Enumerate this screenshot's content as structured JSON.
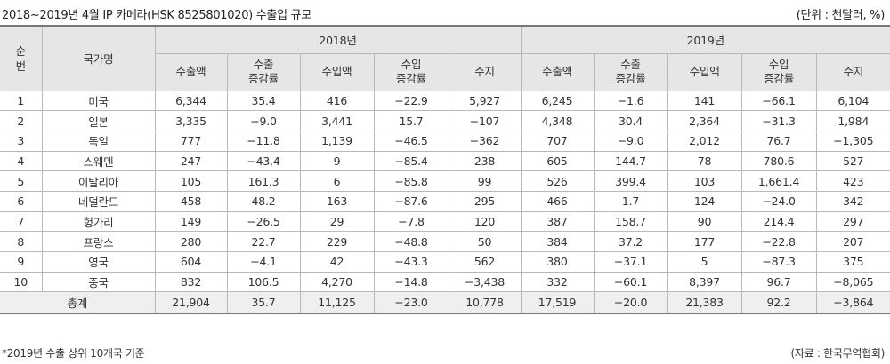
{
  "title": "2018~2019년 4월 IP 카메라(HSK 8525801020) 수출입 규모",
  "unit": "(단위 : 천달러, %)",
  "headers": {
    "rank": "순\n번",
    "country": "국가명",
    "year1": "2018년",
    "year2": "2019년",
    "columns": [
      "수출액",
      "수출\n증감률",
      "수입액",
      "수입\n증감률",
      "수지"
    ]
  },
  "rows": [
    {
      "rank": "1",
      "country": "미국",
      "y2018": [
        "6,344",
        "35.4",
        "416",
        "−22.9",
        "5,927"
      ],
      "y2019": [
        "6,245",
        "−1.6",
        "141",
        "−66.1",
        "6,104"
      ]
    },
    {
      "rank": "2",
      "country": "일본",
      "y2018": [
        "3,335",
        "−9.0",
        "3,441",
        "15.7",
        "−107"
      ],
      "y2019": [
        "4,348",
        "30.4",
        "2,364",
        "−31.3",
        "1,984"
      ]
    },
    {
      "rank": "3",
      "country": "독일",
      "y2018": [
        "777",
        "−11.8",
        "1,139",
        "−46.5",
        "−362"
      ],
      "y2019": [
        "707",
        "−9.0",
        "2,012",
        "76.7",
        "−1,305"
      ]
    },
    {
      "rank": "4",
      "country": "스웨덴",
      "y2018": [
        "247",
        "−43.4",
        "9",
        "−85.4",
        "238"
      ],
      "y2019": [
        "605",
        "144.7",
        "78",
        "780.6",
        "527"
      ]
    },
    {
      "rank": "5",
      "country": "이탈리아",
      "y2018": [
        "105",
        "161.3",
        "6",
        "−85.8",
        "99"
      ],
      "y2019": [
        "526",
        "399.4",
        "103",
        "1,661.4",
        "423"
      ]
    },
    {
      "rank": "6",
      "country": "네덜란드",
      "y2018": [
        "458",
        "48.2",
        "163",
        "−87.6",
        "295"
      ],
      "y2019": [
        "466",
        "1.7",
        "124",
        "−24.0",
        "342"
      ]
    },
    {
      "rank": "7",
      "country": "헝가리",
      "y2018": [
        "149",
        "−26.5",
        "29",
        "−7.8",
        "120"
      ],
      "y2019": [
        "387",
        "158.7",
        "90",
        "214.4",
        "297"
      ]
    },
    {
      "rank": "8",
      "country": "프랑스",
      "y2018": [
        "280",
        "22.7",
        "229",
        "−48.8",
        "50"
      ],
      "y2019": [
        "384",
        "37.2",
        "177",
        "−22.8",
        "207"
      ]
    },
    {
      "rank": "9",
      "country": "영국",
      "y2018": [
        "604",
        "−4.1",
        "42",
        "−43.3",
        "562"
      ],
      "y2019": [
        "380",
        "−37.1",
        "5",
        "−87.3",
        "375"
      ]
    },
    {
      "rank": "10",
      "country": "중국",
      "y2018": [
        "832",
        "106.5",
        "4,270",
        "−14.8",
        "−3,438"
      ],
      "y2019": [
        "332",
        "−60.1",
        "8,397",
        "96.7",
        "−8,065"
      ]
    }
  ],
  "total": {
    "label": "총계",
    "y2018": [
      "21,904",
      "35.7",
      "11,125",
      "−23.0",
      "10,778"
    ],
    "y2019": [
      "17,519",
      "−20.0",
      "21,383",
      "92.2",
      "−3,864"
    ]
  },
  "footnote": "*2019년 수출 상위 10개국 기준",
  "source": "(자료 : 한국무역협회)"
}
